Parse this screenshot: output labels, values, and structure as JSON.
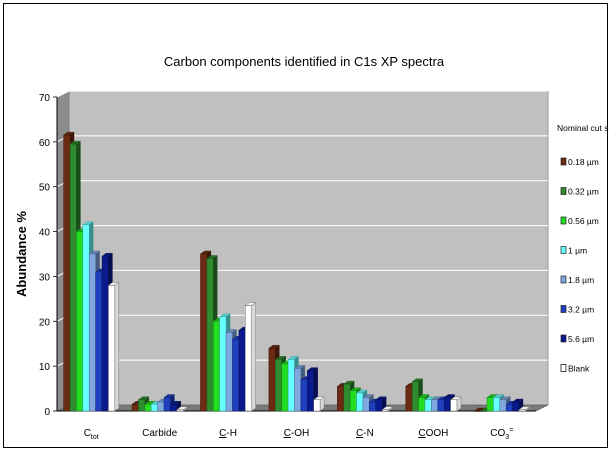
{
  "chart_data": {
    "type": "bar",
    "title": "Carbon components identified in C1s XP spectra",
    "xlabel": "",
    "ylabel": "Abundance %",
    "ylim": [
      0,
      70
    ],
    "yticks": [
      0,
      10,
      20,
      30,
      40,
      50,
      60,
      70
    ],
    "grid": true,
    "legend_position": "right",
    "legend_title": "Nominal cut size",
    "categories": [
      {
        "main": "C",
        "sub": "tot",
        "sup": "",
        "underline": false
      },
      {
        "main": "Carbide",
        "sub": "",
        "sup": "",
        "underline": false
      },
      {
        "main": "-H",
        "prefix": "C",
        "sub": "",
        "sup": "",
        "underline": true
      },
      {
        "main": "-OH",
        "prefix": "C",
        "sub": "",
        "sup": "",
        "underline": true
      },
      {
        "main": "-N",
        "prefix": "C",
        "sub": "",
        "sup": "",
        "underline": true
      },
      {
        "main": "OOH",
        "prefix": "C",
        "sub": "",
        "sup": "",
        "underline": true
      },
      {
        "main": "CO",
        "sub": "3",
        "sup": "=",
        "underline": false
      }
    ],
    "series": [
      {
        "name": "0.18 µm",
        "color": "#6b2a12",
        "values": [
          61.5,
          1.5,
          35,
          14,
          5.5,
          5.5,
          0
        ]
      },
      {
        "name": "0.32 µm",
        "color": "#2e8b2e",
        "values": [
          59.5,
          2.5,
          34,
          11.5,
          6,
          6.5,
          0
        ]
      },
      {
        "name": "0.56 µm",
        "color": "#22dd22",
        "values": [
          40,
          1.5,
          20,
          10.5,
          4.5,
          3,
          3
        ]
      },
      {
        "name": "1 µm",
        "color": "#66ffff",
        "values": [
          41.5,
          1.5,
          21,
          11.5,
          4,
          2.5,
          3
        ]
      },
      {
        "name": "1.8 µm",
        "color": "#7fa8e0",
        "values": [
          35,
          2,
          17.5,
          9.5,
          3,
          2.5,
          2.5
        ]
      },
      {
        "name": "3.2 µm",
        "color": "#1f3fbf",
        "values": [
          31,
          3,
          16,
          7,
          2,
          2.5,
          1.5
        ]
      },
      {
        "name": "5.6 µm",
        "color": "#0a1a8c",
        "values": [
          34.5,
          1.5,
          18,
          9,
          2.5,
          3,
          2
        ]
      },
      {
        "name": "Blank",
        "color": "#ffffff",
        "values": [
          28,
          0.3,
          23.5,
          2.5,
          0.3,
          2.5,
          0.3
        ]
      }
    ]
  }
}
